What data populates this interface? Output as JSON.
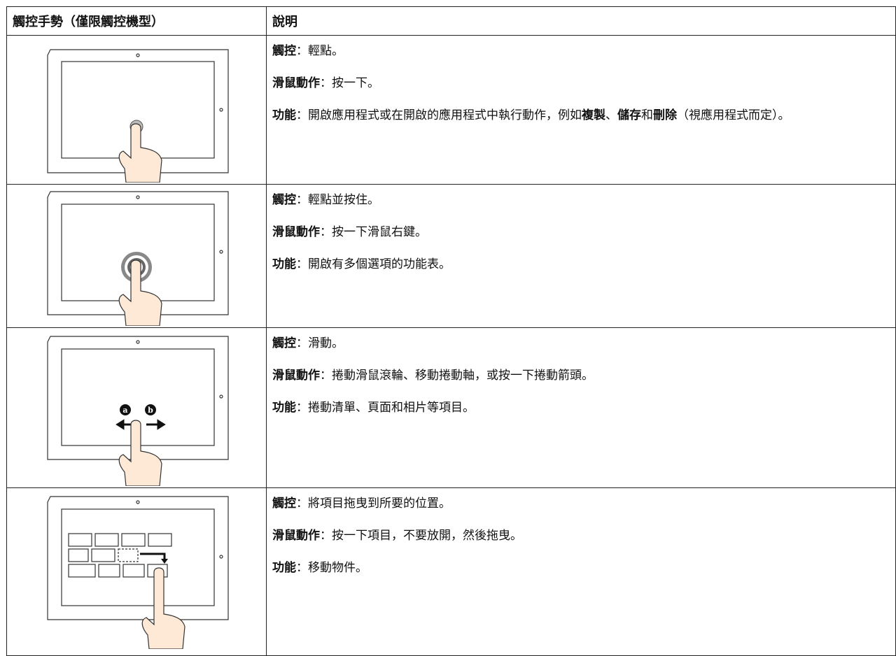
{
  "table": {
    "header": [
      "觸控手勢（僅限觸控機型）",
      "說明"
    ],
    "rows": [
      {
        "lines": [
          [
            {
              "text": "觸控",
              "bold": true
            },
            {
              "text": "：輕點。",
              "bold": false
            }
          ],
          [
            {
              "text": "滑鼠動作",
              "bold": true
            },
            {
              "text": "：按一下。",
              "bold": false
            }
          ],
          [
            {
              "text": "功能",
              "bold": true
            },
            {
              "text": "：開啟應用程式或在開啟的應用程式中執行動作，例如",
              "bold": false
            },
            {
              "text": "複製",
              "bold": true
            },
            {
              "text": "、",
              "bold": false
            },
            {
              "text": "儲存",
              "bold": true
            },
            {
              "text": "和",
              "bold": false
            },
            {
              "text": "刪除",
              "bold": true
            },
            {
              "text": "（視應用程式而定）。",
              "bold": false
            }
          ]
        ]
      },
      {
        "lines": [
          [
            {
              "text": "觸控",
              "bold": true
            },
            {
              "text": "：輕點並按住。",
              "bold": false
            }
          ],
          [
            {
              "text": "滑鼠動作",
              "bold": true
            },
            {
              "text": "：按一下滑鼠右鍵。",
              "bold": false
            }
          ],
          [
            {
              "text": "功能",
              "bold": true
            },
            {
              "text": "：開啟有多個選項的功能表。",
              "bold": false
            }
          ]
        ]
      },
      {
        "callouts": [
          "a",
          "b"
        ],
        "lines": [
          [
            {
              "text": "觸控",
              "bold": true
            },
            {
              "text": "：滑動。",
              "bold": false
            }
          ],
          [
            {
              "text": "滑鼠動作",
              "bold": true
            },
            {
              "text": "：捲動滑鼠滾輪、移動捲動軸，或按一下捲動箭頭。",
              "bold": false
            }
          ],
          [
            {
              "text": "功能",
              "bold": true
            },
            {
              "text": "：捲動清單、頁面和相片等項目。",
              "bold": false
            }
          ]
        ]
      },
      {
        "lines": [
          [
            {
              "text": "觸控",
              "bold": true
            },
            {
              "text": "：將項目拖曳到所要的位置。",
              "bold": false
            }
          ],
          [
            {
              "text": "滑鼠動作",
              "bold": true
            },
            {
              "text": "：按一下項目，不要放開，然後拖曳。",
              "bold": false
            }
          ],
          [
            {
              "text": "功能",
              "bold": true
            },
            {
              "text": "：移動物件。",
              "bold": false
            }
          ]
        ]
      }
    ]
  }
}
